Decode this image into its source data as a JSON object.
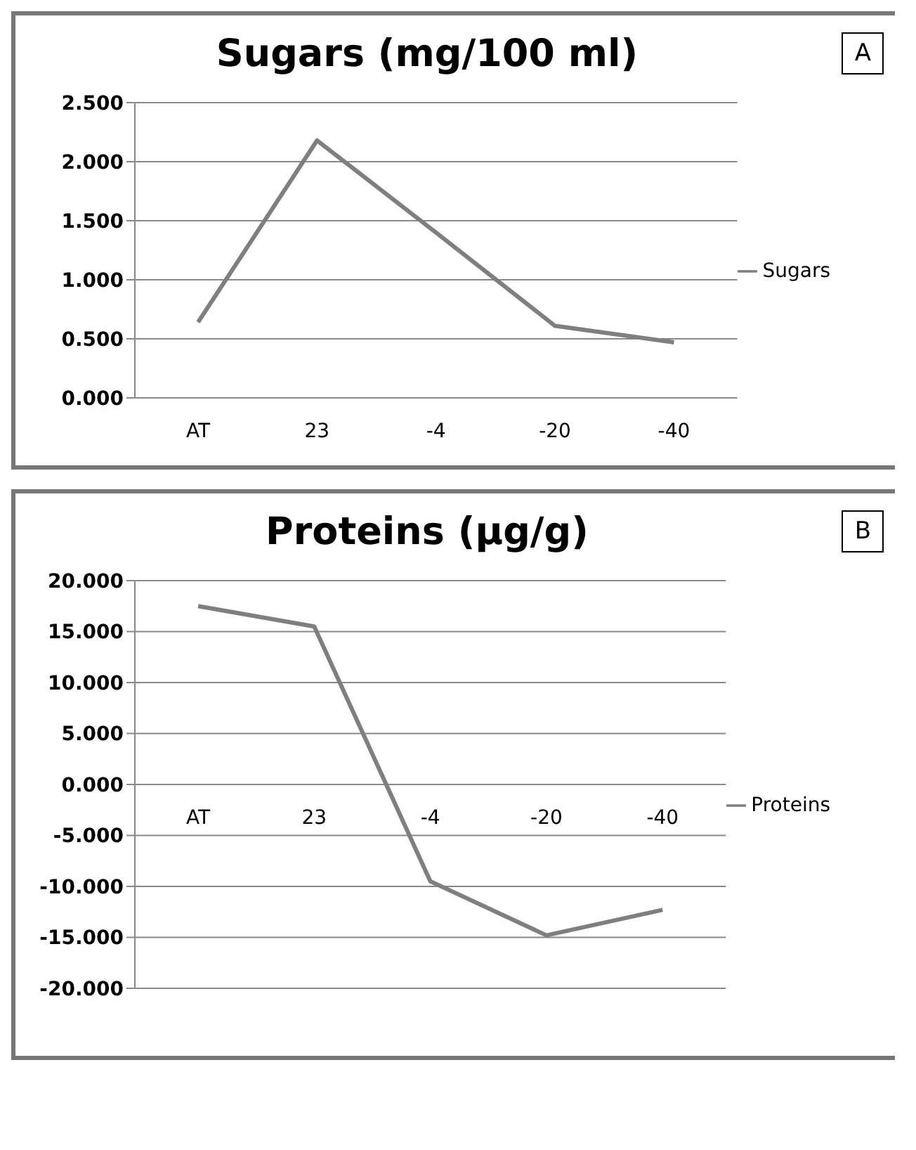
{
  "chart_data": [
    {
      "type": "line",
      "title": "Sugars (mg/100 ml)",
      "categories": [
        "AT",
        "23",
        "-4",
        "-20",
        "-40"
      ],
      "series": [
        {
          "name": "Sugars",
          "color": "#7f7f7f",
          "values": [
            0.64,
            2.18,
            1.4,
            0.61,
            0.47
          ]
        }
      ],
      "ylim": [
        0,
        2.5
      ],
      "yticks": [
        {
          "value": 0,
          "label": "0.000"
        },
        {
          "value": 0.5,
          "label": "0.500"
        },
        {
          "value": 1,
          "label": "1.000"
        },
        {
          "value": 1.5,
          "label": "1.500"
        },
        {
          "value": 2,
          "label": "2.000"
        },
        {
          "value": 2.5,
          "label": "2.500"
        }
      ],
      "grid": "y",
      "legend": "right",
      "annotations": [
        "A"
      ]
    },
    {
      "type": "line",
      "title": "Proteins (μg/g)",
      "categories": [
        "AT",
        "23",
        "-4",
        "-20",
        "-40"
      ],
      "series": [
        {
          "name": "Proteins",
          "color": "#7f7f7f",
          "values": [
            17.5,
            15.5,
            -9.5,
            -14.8,
            -12.3
          ]
        }
      ],
      "ylim": [
        -20,
        20
      ],
      "yticks": [
        {
          "value": -20,
          "label": "-20.000"
        },
        {
          "value": -15,
          "label": "-15.000"
        },
        {
          "value": -10,
          "label": "-10.000"
        },
        {
          "value": -5,
          "label": "-5.000"
        },
        {
          "value": 0,
          "label": "0.000"
        },
        {
          "value": 5,
          "label": "5.000"
        },
        {
          "value": 10,
          "label": "10.000"
        },
        {
          "value": 15,
          "label": "15.000"
        },
        {
          "value": 20,
          "label": "20.000"
        }
      ],
      "grid": "y",
      "legend": "right",
      "annotations": [
        "B"
      ]
    }
  ]
}
